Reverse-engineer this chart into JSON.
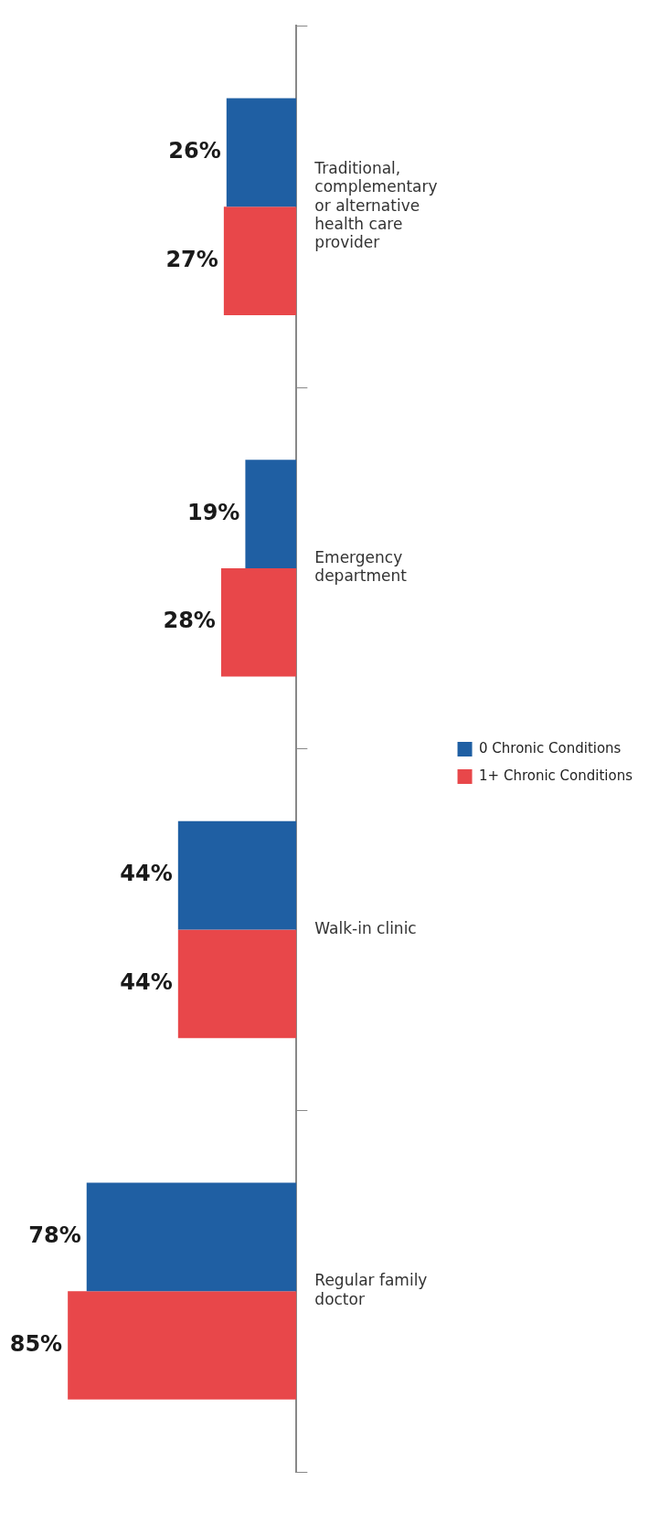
{
  "chart_data": {
    "type": "bar",
    "orientation": "horizontal",
    "categories": [
      "Traditional, complementary or alternative health care provider",
      "Emergency department",
      "Walk-in clinic",
      "Regular family doctor"
    ],
    "series": [
      {
        "name": "0 Chronic Conditions",
        "color": "#1f5fa3",
        "values": [
          26,
          19,
          44,
          78
        ],
        "value_labels": [
          "26%",
          "19%",
          "44%",
          "78%"
        ]
      },
      {
        "name": "1+ Chronic Conditions",
        "color": "#e8474a",
        "values": [
          27,
          28,
          44,
          85
        ],
        "value_labels": [
          "27%",
          "28%",
          "44%",
          "85%"
        ]
      }
    ],
    "legend": "right",
    "grid": false
  }
}
